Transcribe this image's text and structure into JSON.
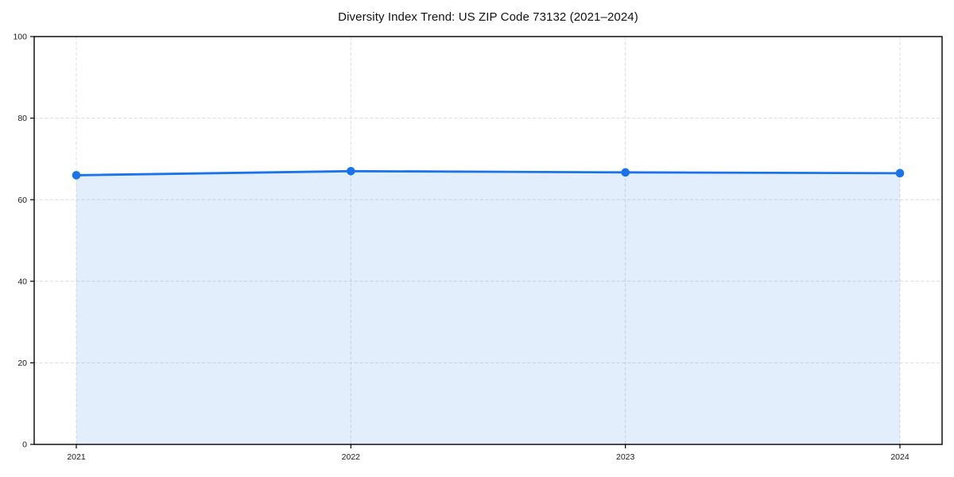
{
  "chart_data": {
    "type": "area",
    "title": "Diversity Index Trend: US ZIP Code 73132 (2021–2024)",
    "x": [
      2021,
      2022,
      2023,
      2024
    ],
    "values": [
      66.0,
      67.0,
      66.7,
      66.5
    ],
    "xlabel": "",
    "ylabel": "",
    "ylim": [
      0,
      100
    ],
    "yticks": [
      0,
      20,
      40,
      60,
      80,
      100
    ],
    "xticks": [
      2021,
      2022,
      2023,
      2024
    ],
    "grid": true,
    "grid_style": "dashed",
    "legend": false,
    "marker": "circle",
    "colors": {
      "line": "#1a73e8",
      "marker": "#1a73e8",
      "fill": "rgba(26,115,232,0.12)",
      "grid": "#dcdcdc",
      "spine": "#000000",
      "tick_label": "#1a1a1a",
      "title": "#111111",
      "background": "#ffffff"
    }
  }
}
